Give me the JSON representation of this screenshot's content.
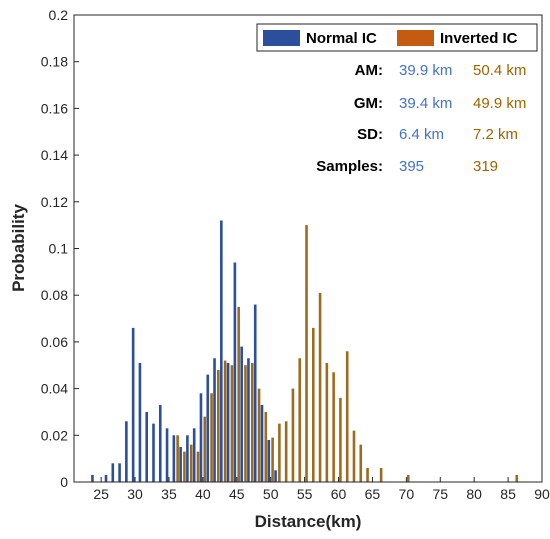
{
  "chart_data": {
    "type": "bar",
    "xlabel": "Distance(km)",
    "ylabel": "Probability",
    "xlim": [
      21,
      90
    ],
    "ylim": [
      0,
      0.2
    ],
    "x_ticks": [
      "25",
      "30",
      "35",
      "40",
      "45",
      "50",
      "55",
      "60",
      "65",
      "70",
      "75",
      "80",
      "85",
      "90"
    ],
    "y_ticks": [
      "0",
      "0.02",
      "0.04",
      "0.06",
      "0.08",
      "0.1",
      "0.12",
      "0.14",
      "0.16",
      "0.18",
      "0.2"
    ],
    "legend_position": "top-right",
    "series": [
      {
        "name": "Normal IC",
        "color": "#2c4f9b",
        "points": [
          [
            24,
            0.003
          ],
          [
            26,
            0.003
          ],
          [
            27,
            0.008
          ],
          [
            28,
            0.008
          ],
          [
            29,
            0.026
          ],
          [
            30,
            0.066
          ],
          [
            31,
            0.051
          ],
          [
            32,
            0.03
          ],
          [
            33,
            0.025
          ],
          [
            34,
            0.033
          ],
          [
            35,
            0.023
          ],
          [
            36,
            0.02
          ],
          [
            37,
            0.015
          ],
          [
            38,
            0.02
          ],
          [
            39,
            0.023
          ],
          [
            40,
            0.038
          ],
          [
            41,
            0.046
          ],
          [
            42,
            0.053
          ],
          [
            43,
            0.112
          ],
          [
            44,
            0.051
          ],
          [
            45,
            0.094
          ],
          [
            46,
            0.058
          ],
          [
            47,
            0.053
          ],
          [
            48,
            0.076
          ],
          [
            49,
            0.033
          ],
          [
            50,
            0.018
          ],
          [
            51,
            0.005
          ]
        ]
      },
      {
        "name": "Inverted IC",
        "color": "#9c6b1f",
        "points": [
          [
            36,
            0.02
          ],
          [
            37,
            0.013
          ],
          [
            38,
            0.016
          ],
          [
            39,
            0.013
          ],
          [
            40,
            0.028
          ],
          [
            41,
            0.038
          ],
          [
            42,
            0.048
          ],
          [
            43,
            0.052
          ],
          [
            44,
            0.05
          ],
          [
            45,
            0.075
          ],
          [
            46,
            0.05
          ],
          [
            47,
            0.051
          ],
          [
            48,
            0.04
          ],
          [
            49,
            0.03
          ],
          [
            50,
            0.019
          ],
          [
            51,
            0.025
          ],
          [
            52,
            0.026
          ],
          [
            53,
            0.04
          ],
          [
            54,
            0.053
          ],
          [
            55,
            0.11
          ],
          [
            56,
            0.066
          ],
          [
            57,
            0.081
          ],
          [
            58,
            0.051
          ],
          [
            59,
            0.047
          ],
          [
            60,
            0.036
          ],
          [
            61,
            0.056
          ],
          [
            62,
            0.022
          ],
          [
            63,
            0.016
          ],
          [
            64,
            0.006
          ],
          [
            66,
            0.006
          ],
          [
            70,
            0.003
          ],
          [
            86,
            0.003
          ]
        ]
      }
    ],
    "stats": {
      "rows": [
        {
          "label": "AM:",
          "normal": "39.9 km",
          "inverted": "50.4 km"
        },
        {
          "label": "GM:",
          "normal": "39.4 km",
          "inverted": "49.9 km"
        },
        {
          "label": "SD:",
          "normal": "6.4 km",
          "inverted": "7.2 km"
        },
        {
          "label": "Samples:",
          "normal": "395",
          "inverted": "319"
        }
      ],
      "normal_text_color": "#4472c4",
      "inverted_text_color": "#9c6500"
    }
  }
}
